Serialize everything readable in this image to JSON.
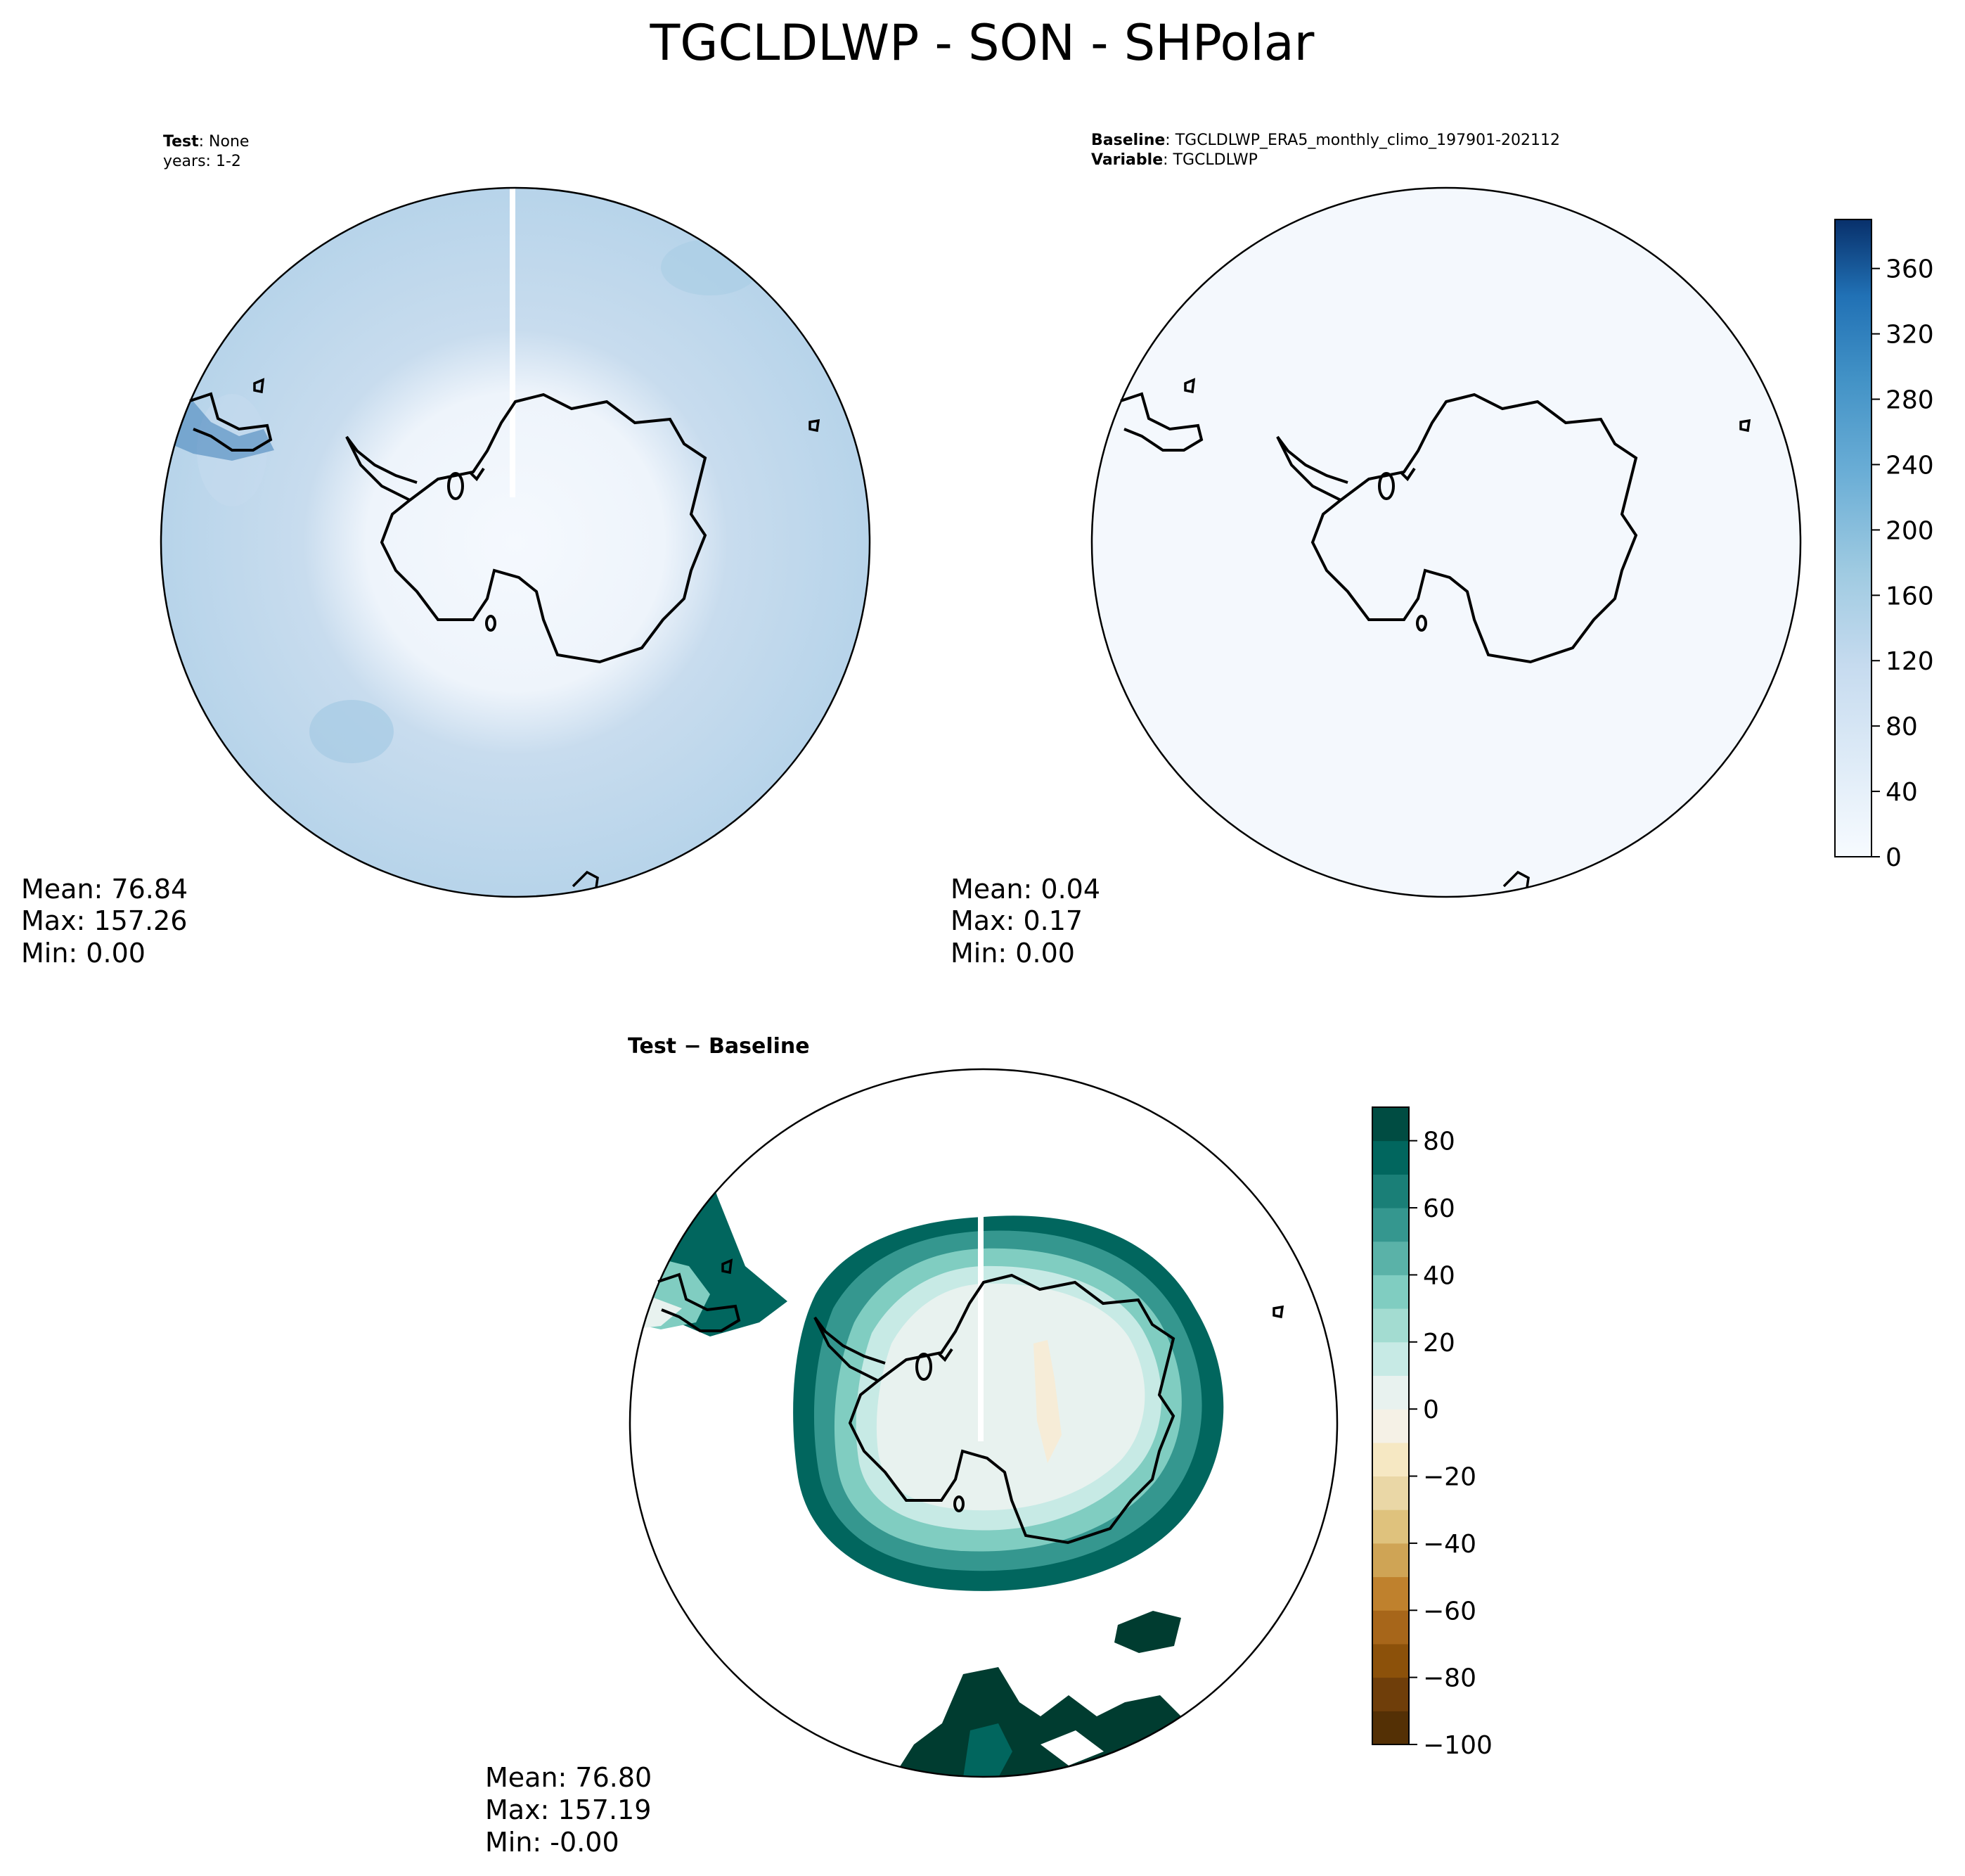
{
  "title": "TGCLDLWP - SON - SHPolar",
  "panels": {
    "test": {
      "label_bold": "Test",
      "label_value": ": None",
      "line2": "years: 1-2",
      "stats": {
        "mean": "Mean: 76.84",
        "max": "Max: 157.26",
        "min": "Min:  0.00"
      }
    },
    "baseline": {
      "label_bold": "Baseline",
      "label_value": ": TGCLDLWP_ERA5_monthly_climo_197901-202112",
      "label2_bold": "Variable",
      "label2_value": ": TGCLDLWP",
      "stats": {
        "mean": "Mean:  0.04",
        "max": "Max:  0.17",
        "min": "Min:  0.00"
      }
    },
    "diff": {
      "title": "Test − Baseline",
      "stats": {
        "mean": "Mean: 76.80",
        "max": "Max: 157.19",
        "min": "Min: -0.00"
      }
    }
  },
  "chart_data": [
    {
      "type": "heatmap",
      "name": "test",
      "projection": "south polar stereographic",
      "colormap": "Blues",
      "colorbar_shared_with": "baseline",
      "mean": 76.84,
      "max": 157.26,
      "min": 0.0
    },
    {
      "type": "heatmap",
      "name": "baseline",
      "projection": "south polar stereographic",
      "colormap": "Blues",
      "colorbar": {
        "ticks": [
          "0",
          "40",
          "80",
          "120",
          "160",
          "200",
          "240",
          "280",
          "320",
          "360"
        ],
        "tick_values": [
          0,
          40,
          80,
          120,
          160,
          200,
          240,
          280,
          320,
          360
        ],
        "range": [
          0,
          390
        ]
      },
      "mean": 0.04,
      "max": 0.17,
      "min": 0.0
    },
    {
      "type": "heatmap",
      "name": "difference",
      "projection": "south polar stereographic",
      "colormap": "BrBG",
      "colorbar": {
        "ticks": [
          "80",
          "60",
          "40",
          "20",
          "0",
          "−20",
          "−40",
          "−60",
          "−80",
          "−100"
        ],
        "tick_values": [
          80,
          60,
          40,
          20,
          0,
          -20,
          -40,
          -60,
          -80,
          -100
        ],
        "range": [
          -100,
          90
        ],
        "levels": [
          -100,
          -90,
          -80,
          -70,
          -60,
          -50,
          -40,
          -30,
          -20,
          -10,
          0,
          10,
          20,
          30,
          40,
          50,
          60,
          70,
          80,
          90
        ]
      },
      "mean": 76.8,
      "max": 157.19,
      "min": -0.0
    }
  ]
}
